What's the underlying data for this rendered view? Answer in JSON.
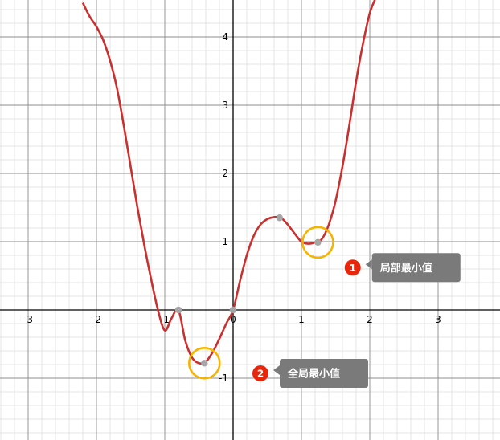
{
  "chart_data": {
    "type": "line",
    "xlim": [
      -3.4,
      3.9
    ],
    "ylim": [
      -1.9,
      4.5
    ],
    "grid": true,
    "x_ticks": [
      "-3",
      "-2",
      "-1",
      "0",
      "1",
      "2",
      "3"
    ],
    "y_ticks": [
      "-1",
      "1",
      "2",
      "3",
      "4"
    ],
    "x_tick_values": [
      -3,
      -2,
      -1,
      0,
      1,
      2,
      3
    ],
    "y_tick_values": [
      -1,
      1,
      2,
      3,
      4
    ],
    "series": [
      {
        "color": "#c8312f",
        "x": [
          -2.2,
          -2.1,
          -2.0,
          -1.9,
          -1.8,
          -1.7,
          -1.6,
          -1.5,
          -1.4,
          -1.3,
          -1.2,
          -1.1,
          -1.0,
          -0.9,
          -0.8,
          -0.7,
          -0.6,
          -0.5,
          -0.4,
          -0.3,
          -0.2,
          -0.1,
          0.0,
          0.1,
          0.2,
          0.3,
          0.4,
          0.5,
          0.6,
          0.7,
          0.8,
          0.9,
          1.0,
          1.1,
          1.2,
          1.3,
          1.4,
          1.5,
          1.6,
          1.7,
          1.8,
          1.9,
          2.0,
          2.1
        ],
        "y": [
          4.5,
          4.3,
          4.15,
          3.95,
          3.65,
          3.25,
          2.7,
          2.1,
          1.5,
          0.95,
          0.45,
          0.0,
          -0.3,
          -0.12,
          0.0,
          -0.45,
          -0.7,
          -0.78,
          -0.76,
          -0.62,
          -0.42,
          -0.2,
          0.0,
          0.42,
          0.8,
          1.08,
          1.25,
          1.33,
          1.36,
          1.35,
          1.25,
          1.12,
          1.0,
          0.97,
          0.99,
          1.04,
          1.25,
          1.6,
          2.1,
          2.7,
          3.35,
          3.9,
          4.35,
          4.6
        ]
      }
    ],
    "key_points": [
      {
        "x": -0.8,
        "y": 0
      },
      {
        "x": 0,
        "y": 0
      },
      {
        "x": 0.68,
        "y": 1.35
      },
      {
        "x": -0.42,
        "y": -0.78
      },
      {
        "x": 1.24,
        "y": 0.99
      }
    ],
    "highlight_circles": [
      {
        "x": -0.42,
        "y": -0.78,
        "color": "#f5b400"
      },
      {
        "x": 1.24,
        "y": 0.99,
        "color": "#f5b400"
      }
    ],
    "annotations": [
      {
        "badge": "1",
        "label": "局部最小值",
        "anchor_x": 1.75,
        "anchor_y": 0.62
      },
      {
        "badge": "2",
        "label": "全局最小值",
        "anchor_x": 0.4,
        "anchor_y": -0.93
      }
    ],
    "colors": {
      "curve": "#c8312f",
      "point": "#a6a6a6",
      "highlight": "#f5b400",
      "callout": "#7a7a7a",
      "badge": "#e8260c",
      "grid_minor": "#dcdcdc",
      "grid_major": "#8c8c8c",
      "axis": "#000000"
    }
  }
}
